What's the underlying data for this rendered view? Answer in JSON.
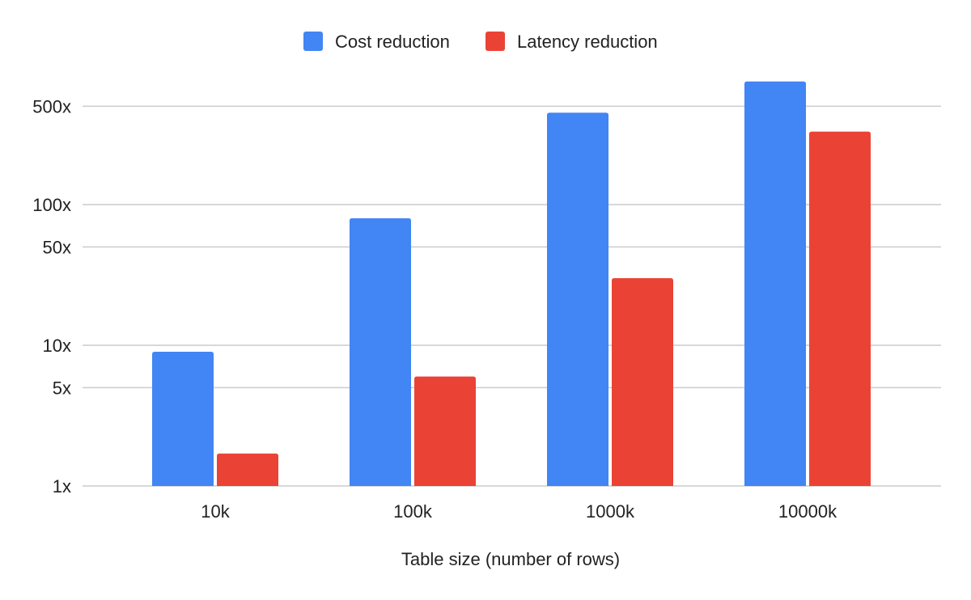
{
  "chart_data": {
    "type": "bar",
    "title": "",
    "xlabel": "Table size (number of rows)",
    "ylabel": "",
    "y_scale": "log",
    "ylim": [
      1,
      700
    ],
    "y_ticks": [
      1,
      5,
      10,
      50,
      100,
      500
    ],
    "y_tick_labels": [
      "1x",
      "5x",
      "10x",
      "50x",
      "100x",
      "500x"
    ],
    "grid": true,
    "legend_position": "top-center",
    "categories": [
      "10k",
      "100k",
      "1000k",
      "10000k"
    ],
    "series": [
      {
        "name": "Cost reduction",
        "color": "#4285f4",
        "values": [
          9,
          80,
          450,
          750
        ]
      },
      {
        "name": "Latency reduction",
        "color": "#ea4335",
        "values": [
          1.7,
          6,
          30,
          330
        ]
      }
    ]
  }
}
